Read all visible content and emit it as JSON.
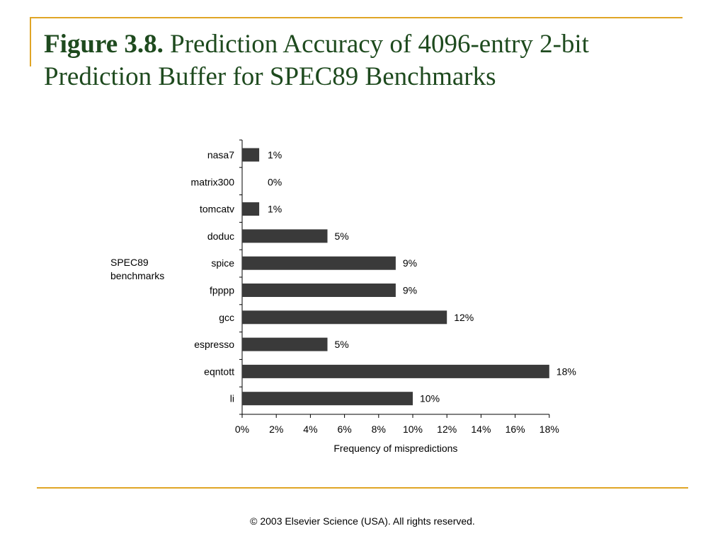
{
  "slide": {
    "title_label": "Figure 3.8.",
    "title_text": "Prediction Accuracy of 4096-entry 2-bit Prediction Buffer for SPEC89 Benchmarks",
    "footer": "© 2003 Elsevier Science (USA). All rights reserved."
  },
  "colors": {
    "accent": "#E0A526",
    "title": "#1E4A1E",
    "bar": "#3A3A3A"
  },
  "chart_data": {
    "type": "bar",
    "orientation": "horizontal",
    "title": "",
    "ylabel": "SPEC89 benchmarks",
    "xlabel": "Frequency of mispredictions",
    "categories": [
      "nasa7",
      "matrix300",
      "tomcatv",
      "doduc",
      "spice",
      "fpppp",
      "gcc",
      "espresso",
      "eqntott",
      "li"
    ],
    "values": [
      1,
      0,
      1,
      5,
      9,
      9,
      12,
      5,
      18,
      10
    ],
    "value_labels": [
      "1%",
      "0%",
      "1%",
      "5%",
      "9%",
      "9%",
      "12%",
      "5%",
      "18%",
      "10%"
    ],
    "x_ticks": [
      "0%",
      "2%",
      "4%",
      "6%",
      "8%",
      "10%",
      "12%",
      "14%",
      "16%",
      "18%"
    ],
    "xlim": [
      0,
      18
    ],
    "unit": "%",
    "grid": false,
    "legend": "none"
  }
}
